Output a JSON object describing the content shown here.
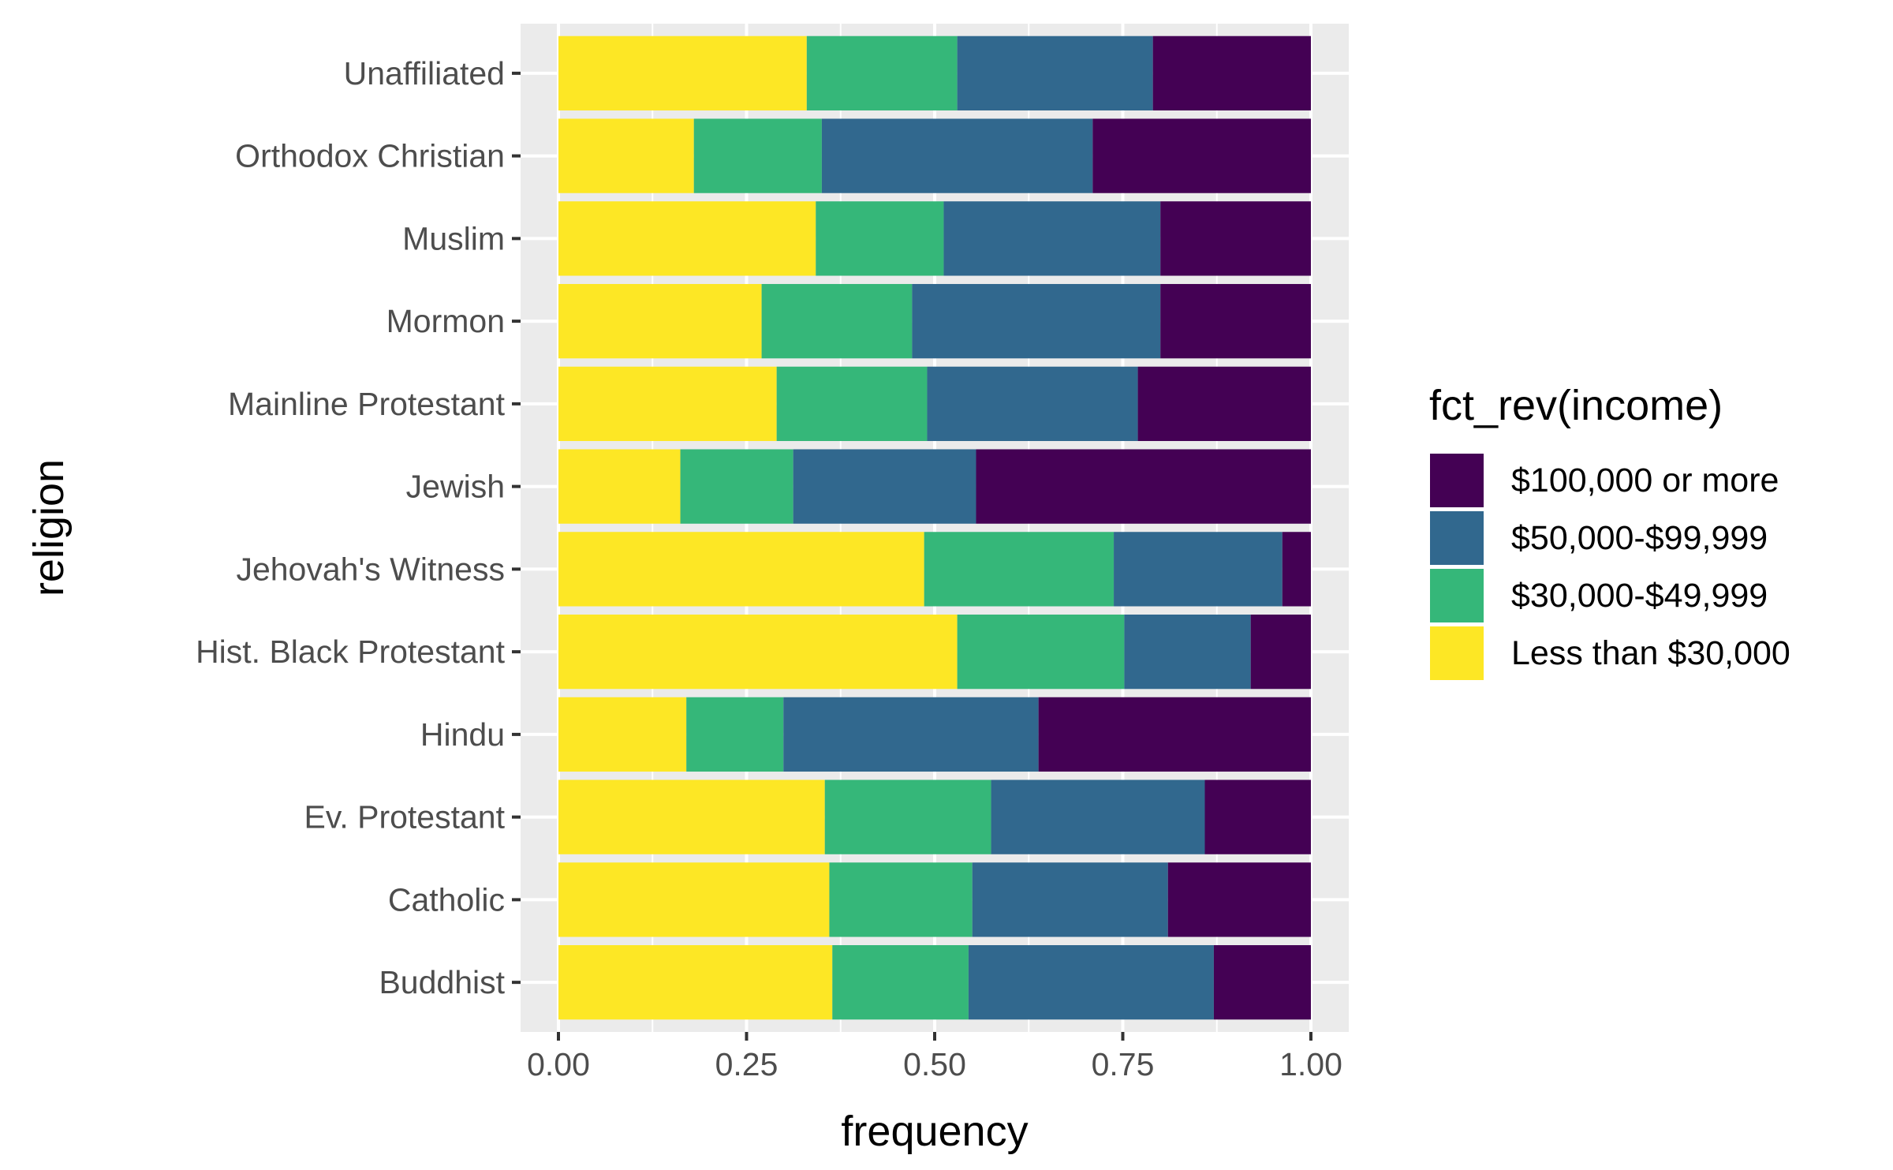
{
  "chart_data": {
    "type": "bar",
    "orientation": "horizontal",
    "stacked": "fill",
    "xlabel": "frequency",
    "ylabel": "religion",
    "xlim": [
      0,
      1
    ],
    "xticks": [
      0,
      0.25,
      0.5,
      0.75,
      1
    ],
    "xtick_labels": [
      "0.00",
      "0.25",
      "0.50",
      "0.75",
      "1.00"
    ],
    "grid": true,
    "legend": {
      "title": "fct_rev(income)",
      "position": "right"
    },
    "categories": [
      "Buddhist",
      "Catholic",
      "Ev. Protestant",
      "Hindu",
      "Hist. Black Protestant",
      "Jehovah's Witness",
      "Jewish",
      "Mainline Protestant",
      "Mormon",
      "Muslim",
      "Orthodox Christian",
      "Unaffiliated"
    ],
    "series": [
      {
        "name": "Less than $30,000",
        "color": "#FDE725",
        "values": [
          0.364,
          0.36,
          0.354,
          0.17,
          0.53,
          0.486,
          0.162,
          0.29,
          0.27,
          0.342,
          0.18,
          0.33
        ]
      },
      {
        "name": "$30,000-$49,999",
        "color": "#35B779",
        "values": [
          0.181,
          0.19,
          0.221,
          0.129,
          0.222,
          0.252,
          0.15,
          0.2,
          0.2,
          0.17,
          0.17,
          0.2
        ]
      },
      {
        "name": "$50,000-$99,999",
        "color": "#31688E",
        "values": [
          0.326,
          0.26,
          0.284,
          0.339,
          0.168,
          0.224,
          0.243,
          0.28,
          0.33,
          0.288,
          0.36,
          0.26
        ]
      },
      {
        "name": "$100,000 or more",
        "color": "#440154",
        "values": [
          0.129,
          0.19,
          0.141,
          0.362,
          0.08,
          0.038,
          0.445,
          0.23,
          0.2,
          0.2,
          0.29,
          0.21
        ]
      }
    ],
    "legend_order": [
      "$100,000 or more",
      "$50,000-$99,999",
      "$30,000-$49,999",
      "Less than $30,000"
    ]
  },
  "colors": {
    "panel_background": "#EBEBEB",
    "gridline": "#FFFFFF",
    "tick_text": "#4D4D4D",
    "tick_mark": "#333333",
    "legend_stroke": "#FFFFFF"
  }
}
